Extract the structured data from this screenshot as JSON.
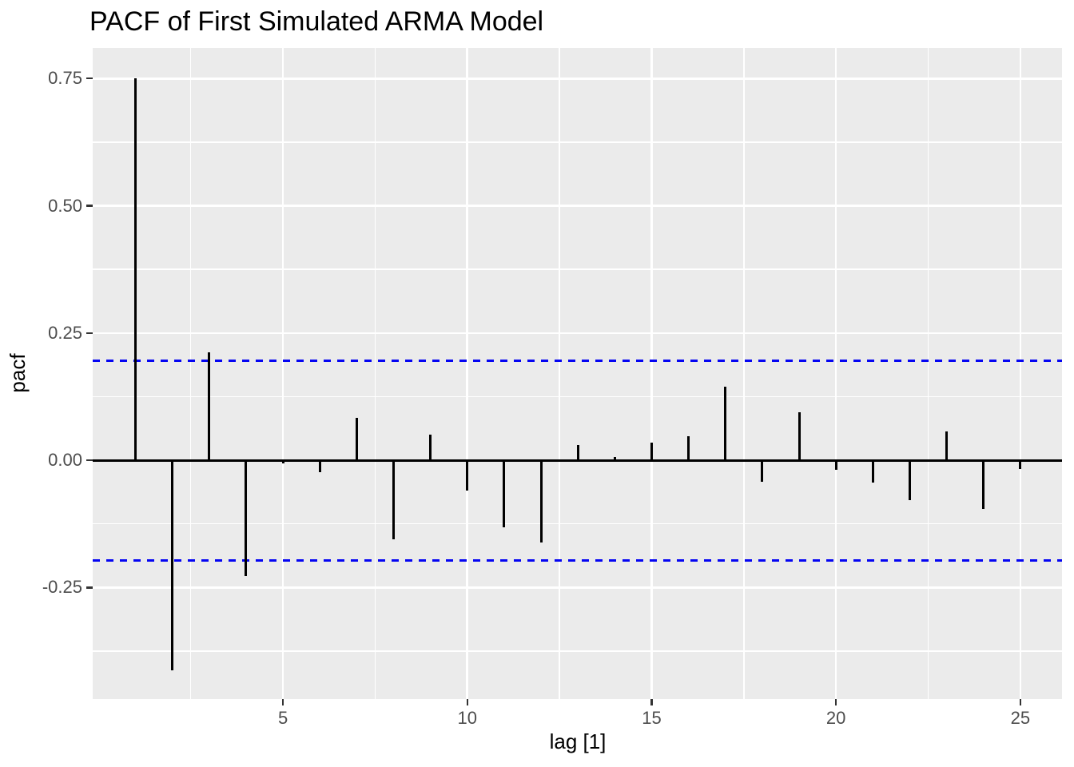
{
  "title": "PACF of First Simulated ARMA Model",
  "x_axis": {
    "label": "lag [1]",
    "tick_labels": [
      "5",
      "10",
      "15",
      "20",
      "25"
    ]
  },
  "y_axis": {
    "label": "pacf",
    "tick_labels": [
      "0.75",
      "0.50",
      "0.25",
      "0.00",
      "-0.25"
    ]
  },
  "chart_data": {
    "type": "bar",
    "subtype": "pacf-spike-plot",
    "title": "PACF of First Simulated ARMA Model",
    "xlabel": "lag [1]",
    "ylabel": "pacf",
    "x": [
      1,
      2,
      3,
      4,
      5,
      6,
      7,
      8,
      9,
      10,
      11,
      12,
      13,
      14,
      15,
      16,
      17,
      18,
      19,
      20,
      21,
      22,
      23,
      24,
      25
    ],
    "values": [
      0.75,
      -0.412,
      0.212,
      -0.228,
      -0.006,
      -0.023,
      0.083,
      -0.155,
      0.05,
      -0.059,
      -0.131,
      -0.161,
      0.03,
      0.007,
      0.035,
      0.048,
      0.145,
      -0.042,
      0.095,
      -0.019,
      -0.044,
      -0.079,
      0.056,
      -0.095,
      -0.017
    ],
    "zero_line": 0,
    "ci_upper": 0.196,
    "ci_lower": -0.196,
    "ci_style": "dashed",
    "xlim": [
      -0.16,
      26.13
    ],
    "ylim": [
      -0.469,
      0.81
    ],
    "x_ticks": [
      5,
      10,
      15,
      20,
      25
    ],
    "y_ticks": [
      0.75,
      0.5,
      0.25,
      0,
      -0.25
    ],
    "x_minor_ticks": [
      2.5,
      7.5,
      12.5,
      17.5,
      22.5
    ],
    "y_minor_ticks": [
      0.625,
      0.375,
      0.125,
      -0.125,
      -0.375
    ],
    "legend": "none",
    "grid": "major-and-minor",
    "style": {
      "panel_bg": "#EBEBEB",
      "grid_color": "#FFFFFF",
      "bar_color": "#000000",
      "zero_line_color": "#000000",
      "ci_color": "#0404F2",
      "tick_text_color": "#4D4D4D",
      "tick_mark_color": "#333333",
      "text_color": "#000000"
    }
  }
}
